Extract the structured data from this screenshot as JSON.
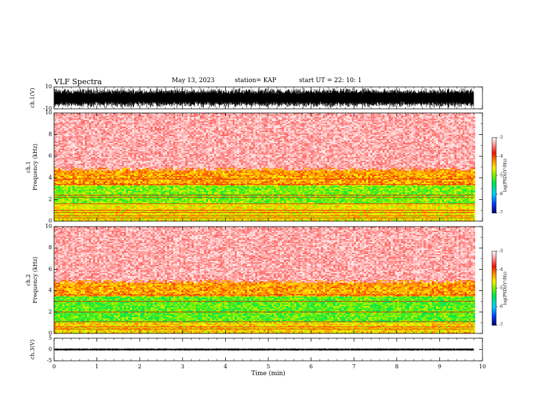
{
  "header": {
    "title": "VLF Spectra",
    "date": "May 13, 2023",
    "station": "station= KAP",
    "start": "start  UT =   22: 10: 1"
  },
  "chart_data": [
    {
      "type": "line",
      "panel": "ch1-waveform",
      "ylabel": "ch.1(V)",
      "ylim": [
        -10,
        10
      ],
      "yticks": [
        "10",
        "-10"
      ],
      "xlim": [
        0,
        10
      ],
      "color": "#000000",
      "note_values": "dense noise waveform spanning roughly -10 to 10 V throughout 0–9.8 min"
    },
    {
      "type": "heatmap",
      "panel": "ch1-spectrogram",
      "ylabel_top": "ch.1",
      "ylabel": "Frequency (kHz)",
      "ylim": [
        0,
        10
      ],
      "yticks": [
        "0",
        "2",
        "4",
        "6",
        "8",
        "10"
      ],
      "xlim": [
        0,
        10
      ],
      "data_end_min": 9.8,
      "colorbar": {
        "label": "log(PSD)(V²/Hz)",
        "range": [
          -7,
          -3
        ],
        "ticks": [
          "-3",
          "-4",
          "-5",
          "-6",
          "-7"
        ]
      },
      "bands": [
        {
          "from_khz": 0,
          "to_khz": 1.6,
          "log_psd": -4.6
        },
        {
          "from_khz": 1.6,
          "to_khz": 3.3,
          "log_psd": -5.0
        },
        {
          "from_khz": 3.3,
          "to_khz": 4.7,
          "log_psd": -4.3
        },
        {
          "from_khz": 4.7,
          "to_khz": 10,
          "log_psd": -3.4
        }
      ],
      "lines_khz": [
        0.3,
        0.5,
        0.8,
        1.0,
        1.6,
        2.2,
        2.4,
        3.4,
        3.9
      ]
    },
    {
      "type": "heatmap",
      "panel": "ch2-spectrogram",
      "ylabel_top": "ch.2",
      "ylabel": "Frequency (kHz)",
      "ylim": [
        0,
        10
      ],
      "yticks": [
        "0",
        "2",
        "4",
        "6",
        "8",
        "10"
      ],
      "xlim": [
        0,
        10
      ],
      "data_end_min": 9.8,
      "colorbar": {
        "label": "log(PSD)(V²/Hz)",
        "range": [
          -7,
          -3
        ],
        "ticks": [
          "-3",
          "-4",
          "-5",
          "-6",
          "-7"
        ]
      },
      "bands": [
        {
          "from_khz": 0,
          "to_khz": 1.0,
          "log_psd": -4.5
        },
        {
          "from_khz": 1.0,
          "to_khz": 3.5,
          "log_psd": -5.1
        },
        {
          "from_khz": 3.5,
          "to_khz": 4.7,
          "log_psd": -4.3
        },
        {
          "from_khz": 4.7,
          "to_khz": 10,
          "log_psd": -3.4
        }
      ],
      "lines_khz": [
        0.4,
        0.6,
        1.1,
        2.0,
        3.0,
        3.6
      ]
    },
    {
      "type": "line",
      "panel": "ch3-waveform",
      "ylabel": "ch.3(V)",
      "ylim": [
        -5,
        5
      ],
      "yticks": [
        "5",
        "0",
        "-5"
      ],
      "xlim": [
        0,
        10
      ],
      "xlabel": "Time (min)",
      "xticks": [
        "0",
        "1",
        "2",
        "3",
        "4",
        "5",
        "6",
        "7",
        "8",
        "9",
        "10"
      ],
      "color": "#000000",
      "note_values": "narrow band around 0 V spanning roughly -0.6 to 0.6 V throughout 0–9.8 min"
    }
  ]
}
